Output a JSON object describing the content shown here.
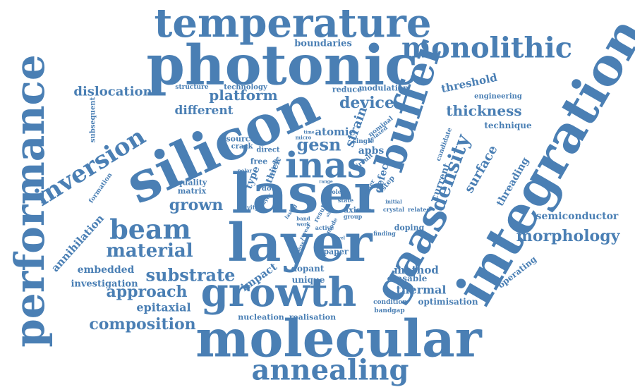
{
  "word_cloud": {
    "color": "#4a7fb4",
    "words": [
      {
        "text": "silicon"
      },
      {
        "text": "laser"
      },
      {
        "text": "layer"
      },
      {
        "text": "molecular"
      },
      {
        "text": "integration"
      },
      {
        "text": "photonic"
      },
      {
        "text": "temperature"
      },
      {
        "text": "growth"
      },
      {
        "text": "buffer"
      },
      {
        "text": "performance"
      },
      {
        "text": "gaas"
      },
      {
        "text": "inas"
      },
      {
        "text": "annealing"
      },
      {
        "text": "monolithic"
      },
      {
        "text": "beam"
      },
      {
        "text": "inversion"
      },
      {
        "text": "material"
      },
      {
        "text": "substrate"
      },
      {
        "text": "density"
      },
      {
        "text": "composition"
      },
      {
        "text": "approach"
      },
      {
        "text": "morphology"
      },
      {
        "text": "dislocation"
      },
      {
        "text": "platform"
      },
      {
        "text": "device"
      },
      {
        "text": "thickness"
      },
      {
        "text": "grown"
      },
      {
        "text": "different"
      },
      {
        "text": "gesn"
      },
      {
        "text": "threshold"
      },
      {
        "text": "surface"
      },
      {
        "text": "annihilation"
      },
      {
        "text": "threading"
      },
      {
        "text": "epitaxial"
      },
      {
        "text": "embedded"
      },
      {
        "text": "investigation"
      },
      {
        "text": "thermal"
      },
      {
        "text": "method"
      },
      {
        "text": "semiconductor"
      },
      {
        "text": "boundaries"
      },
      {
        "text": "atomic"
      },
      {
        "text": "strain"
      },
      {
        "text": "technique"
      },
      {
        "text": "optimisation"
      },
      {
        "text": "operating"
      },
      {
        "text": "erasable"
      },
      {
        "text": "impact"
      },
      {
        "text": "dopant"
      },
      {
        "text": "unique"
      },
      {
        "text": "nucleation"
      },
      {
        "text": "realisation"
      },
      {
        "text": "current"
      },
      {
        "text": "defect"
      },
      {
        "text": "apbs"
      },
      {
        "text": "type"
      },
      {
        "text": "thick"
      },
      {
        "text": "axis"
      },
      {
        "text": "paper"
      },
      {
        "text": "doping"
      },
      {
        "text": "quality"
      },
      {
        "text": "matrix"
      },
      {
        "text": "free"
      },
      {
        "text": "source"
      },
      {
        "text": "crack"
      },
      {
        "text": "direct"
      },
      {
        "text": "dot"
      },
      {
        "text": "reduce"
      },
      {
        "text": "modulation"
      },
      {
        "text": "engineering"
      },
      {
        "text": "structure"
      },
      {
        "text": "technology"
      },
      {
        "text": "subsequent"
      },
      {
        "text": "formation"
      },
      {
        "text": "candidate"
      },
      {
        "text": "condition"
      },
      {
        "text": "bandgap"
      },
      {
        "text": "step"
      },
      {
        "text": "state"
      },
      {
        "text": "single"
      },
      {
        "text": "relaxed"
      },
      {
        "text": "nominal"
      },
      {
        "text": "circuit"
      },
      {
        "text": "chapter"
      },
      {
        "text": "role"
      },
      {
        "text": "result"
      },
      {
        "text": "mode"
      },
      {
        "text": "group"
      },
      {
        "text": "crystal"
      },
      {
        "text": "related"
      },
      {
        "text": "initial"
      },
      {
        "text": "finding"
      },
      {
        "text": "active"
      },
      {
        "text": "reveal"
      },
      {
        "text": "novel"
      },
      {
        "text": "band"
      },
      {
        "text": "work"
      },
      {
        "text": "cavity"
      },
      {
        "text": "polar"
      },
      {
        "text": "micro"
      },
      {
        "text": "scalable"
      },
      {
        "text": "layer"
      },
      {
        "text": "time"
      },
      {
        "text": "range"
      },
      {
        "text": "size"
      },
      {
        "text": "gap"
      },
      {
        "text": "lasing"
      },
      {
        "text": "novel"
      }
    ]
  }
}
